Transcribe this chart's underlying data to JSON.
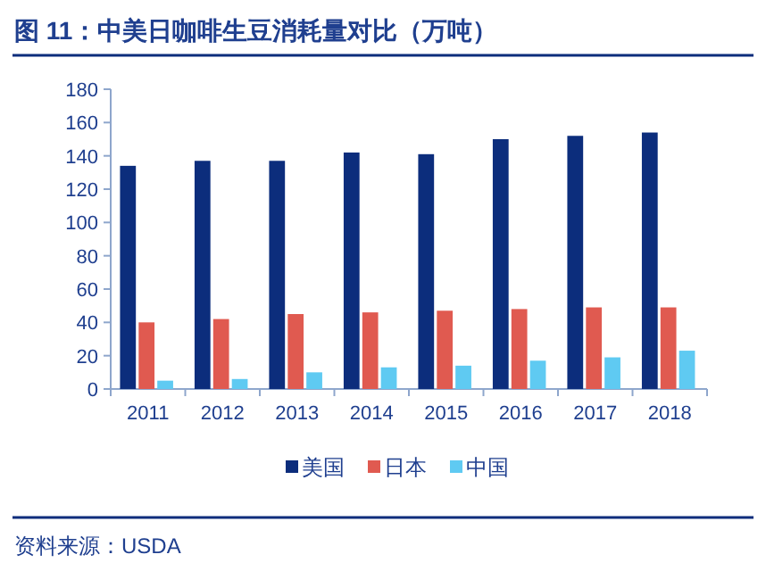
{
  "chart_data": {
    "type": "bar",
    "title": "图 11：中美日咖啡生豆消耗量对比（万吨）",
    "categories": [
      "2011",
      "2012",
      "2013",
      "2014",
      "2015",
      "2016",
      "2017",
      "2018"
    ],
    "series": [
      {
        "name": "美国",
        "color": "#0c2d7c",
        "values": [
          134,
          137,
          137,
          142,
          141,
          150,
          152,
          154
        ]
      },
      {
        "name": "日本",
        "color": "#e05a50",
        "values": [
          40,
          42,
          45,
          46,
          47,
          48,
          49,
          49
        ]
      },
      {
        "name": "中国",
        "color": "#5fcaf2",
        "values": [
          5,
          6,
          10,
          13,
          14,
          17,
          19,
          23
        ]
      }
    ],
    "ylim": [
      0,
      180
    ],
    "yticks": [
      0,
      20,
      40,
      60,
      80,
      100,
      120,
      140,
      160,
      180
    ],
    "grid": false,
    "legend": "bottom",
    "annotations": [
      "资料来源：USDA"
    ]
  }
}
